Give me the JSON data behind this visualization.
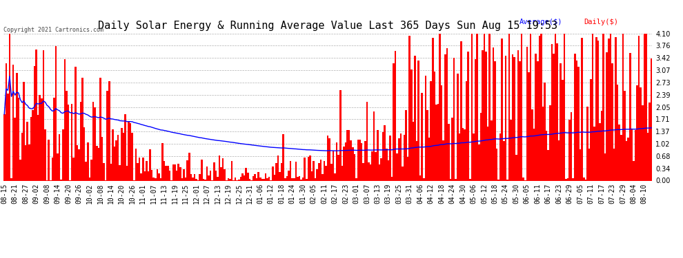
{
  "title": "Daily Solar Energy & Running Average Value Last 365 Days Sun Aug 15 19:53",
  "copyright": "Copyright 2021 Cartronics.com",
  "legend_avg": "Average($)",
  "legend_daily": "Daily($)",
  "bar_color": "#ff0000",
  "avg_line_color": "#0000ff",
  "background_color": "#ffffff",
  "plot_bg_color": "#ffffff",
  "grid_color": "#b0b0b0",
  "ylim": [
    0.0,
    4.1
  ],
  "yticks": [
    0.0,
    0.34,
    0.68,
    1.02,
    1.37,
    1.71,
    2.05,
    2.39,
    2.73,
    3.07,
    3.42,
    3.76,
    4.1
  ],
  "title_fontsize": 11,
  "tick_fontsize": 7,
  "num_bars": 365,
  "x_tick_labels": [
    "08-15",
    "08-21",
    "08-27",
    "09-02",
    "09-08",
    "09-14",
    "09-20",
    "09-26",
    "10-02",
    "10-08",
    "10-14",
    "10-20",
    "10-26",
    "11-01",
    "11-07",
    "11-13",
    "11-19",
    "11-25",
    "12-01",
    "12-07",
    "12-13",
    "12-19",
    "12-25",
    "12-31",
    "01-06",
    "01-12",
    "01-18",
    "01-24",
    "01-30",
    "02-05",
    "02-11",
    "02-17",
    "02-23",
    "03-01",
    "03-07",
    "03-13",
    "03-19",
    "03-25",
    "03-31",
    "04-06",
    "04-12",
    "04-18",
    "04-24",
    "04-30",
    "05-06",
    "05-12",
    "05-18",
    "05-24",
    "05-30",
    "06-05",
    "06-11",
    "06-17",
    "06-23",
    "06-29",
    "07-05",
    "07-11",
    "07-17",
    "07-23",
    "07-29",
    "08-04",
    "08-10"
  ]
}
